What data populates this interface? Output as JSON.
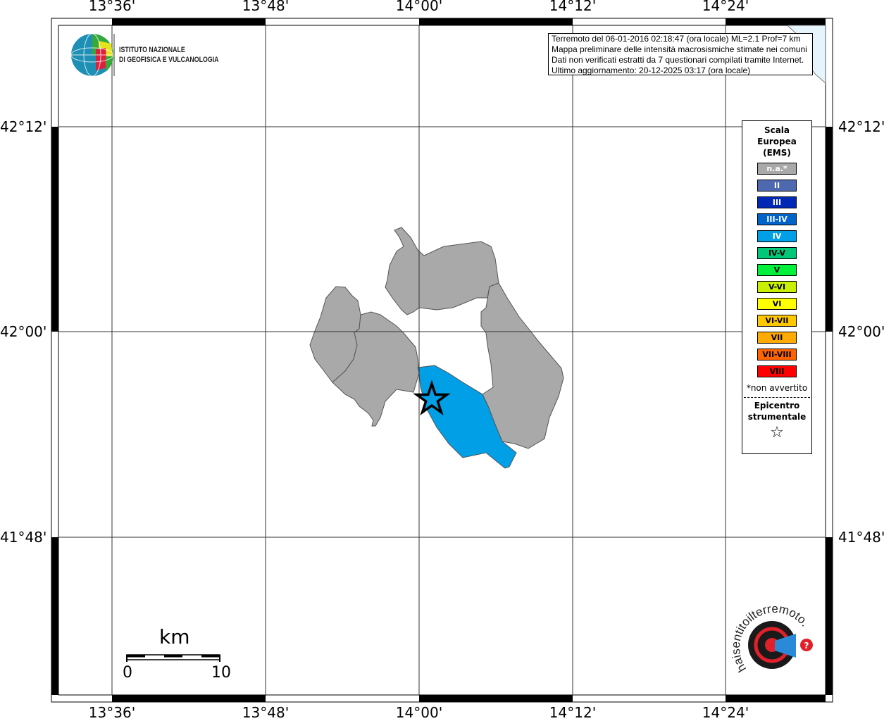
{
  "map": {
    "lon_labels": [
      "13°36'",
      "13°48'",
      "14°00'",
      "14°12'",
      "14°24'"
    ],
    "lat_labels": [
      "42°12'",
      "42°00'",
      "41°48'"
    ],
    "colors": {
      "not_felt": "#a9a9a9",
      "intensity_IV": "#009fe6",
      "water": "#e6f4fc"
    }
  },
  "info": {
    "line1": "Terremoto del 06-01-2016 02:18:47 (ora locale) ML=2.1 Prof=7 km",
    "line2": "Mappa preliminare delle intensità macrosismiche stimate nei comuni",
    "line3": "Dati non verificati estratti da 7 questionari compilati tramite Internet.",
    "line4": "Ultimo aggiornamento: 20-12-2025 03:17 (ora locale)"
  },
  "logo_ingv": {
    "line1": "ISTITUTO NAZIONALE",
    "line2": "DI GEOFISICA E VULCANOLOGIA"
  },
  "logo_hsit": {
    "text": "www.haisentitoilterremoto.it"
  },
  "legend": {
    "title": [
      "Scala",
      "Europea",
      "(EMS)"
    ],
    "items": [
      {
        "label": "n.a.*",
        "color": "#a9a9a9",
        "text_color": "#ffffff"
      },
      {
        "label": "II",
        "color": "#4f69b0",
        "text_color": "#ffffff"
      },
      {
        "label": "III",
        "color": "#0028b4",
        "text_color": "#ffffff"
      },
      {
        "label": "III-IV",
        "color": "#0064c8",
        "text_color": "#ffffff"
      },
      {
        "label": "IV",
        "color": "#009fe6",
        "text_color": "#ffffff"
      },
      {
        "label": "IV-V",
        "color": "#00c878",
        "text_color": "#000000"
      },
      {
        "label": "V",
        "color": "#00f03c",
        "text_color": "#000000"
      },
      {
        "label": "V-VI",
        "color": "#c8f000",
        "text_color": "#000000"
      },
      {
        "label": "VI",
        "color": "#ffff00",
        "text_color": "#000000"
      },
      {
        "label": "VI-VII",
        "color": "#ffc800",
        "text_color": "#000000"
      },
      {
        "label": "VII",
        "color": "#ffaa00",
        "text_color": "#000000"
      },
      {
        "label": "VII-VIII",
        "color": "#ff6400",
        "text_color": "#000000"
      },
      {
        "label": "VIII",
        "color": "#ff0000",
        "text_color": "#000000"
      }
    ],
    "note": "*non avvertito",
    "epicenter_title": [
      "Epicentro",
      "strumentale"
    ],
    "epicenter_symbol": "☆"
  },
  "scalebar": {
    "unit": "km",
    "min": "0",
    "max": "10"
  }
}
